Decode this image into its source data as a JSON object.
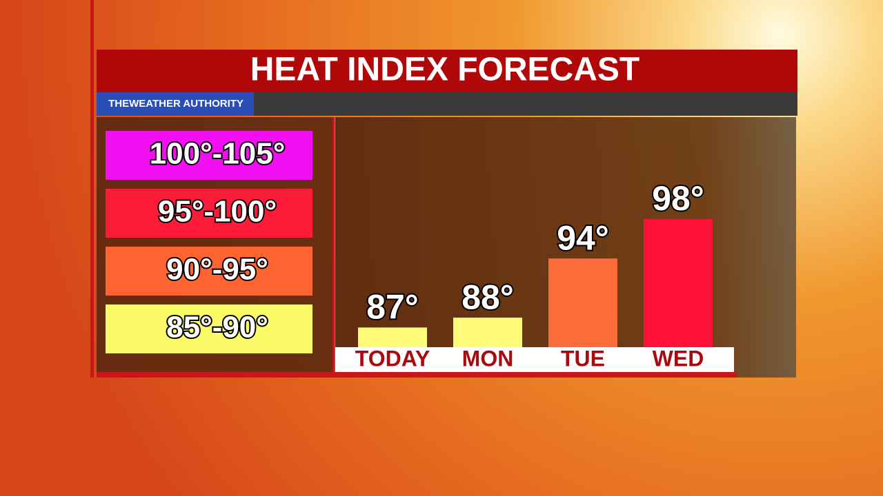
{
  "chart_data": {
    "type": "bar",
    "title": "HEAT INDEX FORECAST",
    "branding": "THEWEATHER AUTHORITY",
    "categories": [
      "TODAY",
      "MON",
      "TUE",
      "WED"
    ],
    "values": [
      87,
      88,
      94,
      98
    ],
    "value_labels": [
      "87°",
      "88°",
      "94°",
      "98°"
    ],
    "colors": [
      "#fdfb78",
      "#fdfb78",
      "#fd6d3c",
      "#fe1038"
    ],
    "ylim": [
      85,
      98
    ],
    "legend": [
      {
        "label": "100°-105°",
        "color": "#f20ff2"
      },
      {
        "label": "95°-100°",
        "color": "#fe1c3a"
      },
      {
        "label": "90°-95°",
        "color": "#fd6432"
      },
      {
        "label": "85°-90°",
        "color": "#fbfb68"
      }
    ]
  }
}
